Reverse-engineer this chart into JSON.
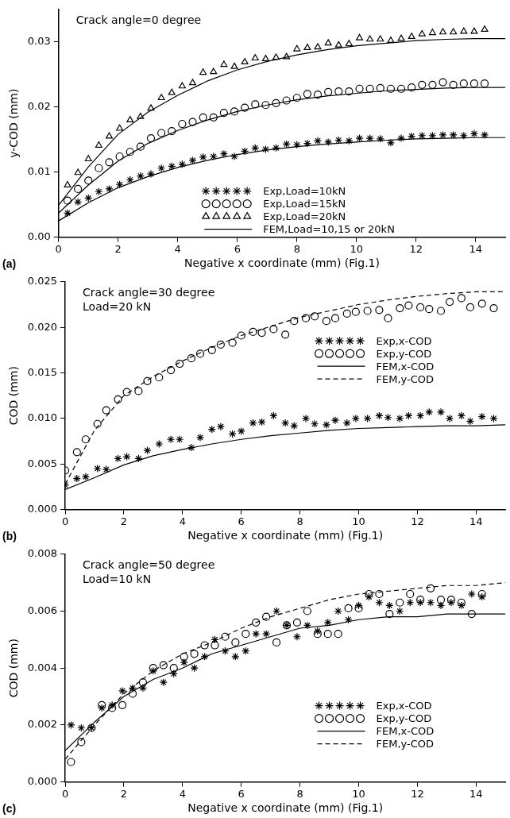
{
  "chart_data": [
    {
      "type": "scatter",
      "title": "Crack angle=0 degree",
      "xlabel": "Negative x coordinate (mm) (Fig.1)",
      "ylabel": "y-COD (mm)",
      "annotations": [
        "(a)"
      ],
      "xlim": [
        0,
        15
      ],
      "xticks": [
        0,
        2,
        4,
        6,
        8,
        10,
        12,
        14
      ],
      "ylim": [
        0,
        0.035
      ],
      "yticks": [
        {
          "value": 0,
          "label": "0.00"
        },
        {
          "value": 0.01,
          "label": "0.01"
        },
        {
          "value": 0.02,
          "label": "0.02"
        },
        {
          "value": 0.03,
          "label": "0.03"
        }
      ],
      "grid": false,
      "legend": "bottom",
      "x": [
        0.3,
        0.65,
        1,
        1.35,
        1.7,
        2.05,
        2.4,
        2.75,
        3.1,
        3.45,
        3.8,
        4.15,
        4.5,
        4.85,
        5.2,
        5.55,
        5.9,
        6.25,
        6.6,
        6.95,
        7.3,
        7.65,
        8,
        8.35,
        8.7,
        9.05,
        9.4,
        9.75,
        10.1,
        10.45,
        10.8,
        11.15,
        11.5,
        11.85,
        12.2,
        12.55,
        12.9,
        13.25,
        13.6,
        13.95,
        14.3
      ],
      "series": [
        {
          "name": "Exp,Load=10kN",
          "type": "scatter",
          "marker": "cross",
          "color": "#000000",
          "values": [
            0.0037,
            0.0054,
            0.006,
            0.007,
            0.0074,
            0.0081,
            0.0088,
            0.0094,
            0.0097,
            0.0106,
            0.0109,
            0.0112,
            0.0118,
            0.0123,
            0.0124,
            0.0128,
            0.0124,
            0.0132,
            0.0137,
            0.0135,
            0.0137,
            0.0143,
            0.0142,
            0.0144,
            0.0148,
            0.0146,
            0.0149,
            0.0148,
            0.0152,
            0.0152,
            0.0151,
            0.0145,
            0.0152,
            0.0155,
            0.0156,
            0.0156,
            0.0157,
            0.0157,
            0.0156,
            0.0159,
            0.0157
          ]
        },
        {
          "name": "Exp,Load=15kN",
          "type": "scatter",
          "marker": "circle",
          "color": "#000000",
          "values": [
            0.0056,
            0.0074,
            0.0087,
            0.0106,
            0.0115,
            0.0124,
            0.0131,
            0.0139,
            0.0152,
            0.016,
            0.0163,
            0.0174,
            0.0177,
            0.0184,
            0.0184,
            0.0191,
            0.0193,
            0.0199,
            0.0204,
            0.0203,
            0.0206,
            0.021,
            0.0214,
            0.022,
            0.0219,
            0.0223,
            0.0224,
            0.0224,
            0.0228,
            0.0228,
            0.0229,
            0.0228,
            0.0228,
            0.023,
            0.0234,
            0.0234,
            0.0238,
            0.0234,
            0.0236,
            0.0236,
            0.0236
          ]
        },
        {
          "name": "Exp,Load=20kN",
          "type": "scatter",
          "marker": "triangle",
          "color": "#000000",
          "values": [
            0.008,
            0.0099,
            0.012,
            0.0141,
            0.0155,
            0.0167,
            0.018,
            0.0185,
            0.0198,
            0.0214,
            0.0222,
            0.0232,
            0.0237,
            0.0253,
            0.0254,
            0.0265,
            0.0262,
            0.0269,
            0.0275,
            0.0274,
            0.0276,
            0.0277,
            0.0289,
            0.0291,
            0.0292,
            0.0298,
            0.0295,
            0.0297,
            0.0306,
            0.0304,
            0.0304,
            0.0302,
            0.0305,
            0.0308,
            0.0312,
            0.0314,
            0.0315,
            0.0315,
            0.0316,
            0.0316,
            0.0319
          ]
        },
        {
          "name": "FEM,Load=10,15 or 20kN",
          "type": "line",
          "marker": "none",
          "line_style": "solid",
          "color": "#000000",
          "x": [
            0,
            1,
            2,
            3,
            4,
            5,
            6,
            7,
            8,
            9,
            10,
            11,
            12,
            13,
            14,
            15
          ],
          "values": [
            0.0025,
            0.0053,
            0.0076,
            0.0093,
            0.0107,
            0.0118,
            0.0127,
            0.0134,
            0.0139,
            0.0143,
            0.0146,
            0.0149,
            0.0151,
            0.0152,
            0.0153,
            0.0153
          ]
        },
        {
          "type": "line",
          "marker": "none",
          "line_style": "solid",
          "color": "#000000",
          "x": [
            0,
            1,
            2,
            3,
            4,
            5,
            6,
            7,
            8,
            9,
            10,
            11,
            12,
            13,
            14,
            15
          ],
          "values": [
            0.0037,
            0.008,
            0.0117,
            0.0144,
            0.0164,
            0.018,
            0.0193,
            0.0203,
            0.0211,
            0.0217,
            0.0221,
            0.0225,
            0.0227,
            0.0229,
            0.023,
            0.023
          ]
        },
        {
          "type": "line",
          "marker": "none",
          "line_style": "solid",
          "color": "#000000",
          "x": [
            0,
            1,
            2,
            3,
            4,
            5,
            6,
            7,
            8,
            9,
            10,
            11,
            12,
            13,
            14,
            15
          ],
          "values": [
            0.0049,
            0.0108,
            0.0158,
            0.0192,
            0.0218,
            0.024,
            0.0257,
            0.027,
            0.028,
            0.0288,
            0.0294,
            0.0298,
            0.0302,
            0.0304,
            0.0305,
            0.0305
          ]
        }
      ]
    },
    {
      "type": "scatter",
      "title": "Crack angle=30 degree",
      "subtitle": "Load=20 kN",
      "xlabel": "Negative x coordinate (mm) (Fig.1)",
      "ylabel": "COD (mm)",
      "annotations": [
        "(b)"
      ],
      "xlim": [
        0,
        15
      ],
      "xticks": [
        0,
        2,
        4,
        6,
        8,
        10,
        12,
        14
      ],
      "ylim": [
        0,
        0.025
      ],
      "yticks": [
        {
          "value": 0,
          "label": "0.000"
        },
        {
          "value": 0.005,
          "label": "0.005"
        },
        {
          "value": 0.01,
          "label": "0.010"
        },
        {
          "value": 0.015,
          "label": "0.015"
        },
        {
          "value": 0.02,
          "label": "0.020"
        },
        {
          "value": 0.025,
          "label": "0.025"
        }
      ],
      "grid": false,
      "legend": "right",
      "x": [
        0,
        0.4,
        0.7,
        1.1,
        1.4,
        1.8,
        2.1,
        2.5,
        2.8,
        3.2,
        3.6,
        3.9,
        4.3,
        4.6,
        5,
        5.3,
        5.7,
        6,
        6.4,
        6.7,
        7.1,
        7.5,
        7.8,
        8.2,
        8.5,
        8.9,
        9.2,
        9.6,
        9.9,
        10.3,
        10.7,
        11,
        11.4,
        11.7,
        12.1,
        12.4,
        12.8,
        13.1,
        13.5,
        13.8,
        14.2,
        14.6
      ],
      "series": [
        {
          "name": "Exp,x-COD",
          "type": "scatter",
          "marker": "cross",
          "color": "#000000",
          "values": [
            0.0027,
            0.0034,
            0.0036,
            0.0045,
            0.0044,
            0.0056,
            0.0058,
            0.0056,
            0.0065,
            0.0072,
            0.0077,
            0.0077,
            0.0068,
            0.0079,
            0.0088,
            0.0091,
            0.0083,
            0.0086,
            0.0095,
            0.0096,
            0.0103,
            0.0095,
            0.0092,
            0.01,
            0.0094,
            0.0093,
            0.0098,
            0.0095,
            0.01,
            0.01,
            0.0103,
            0.0101,
            0.01,
            0.0103,
            0.0103,
            0.0107,
            0.0107,
            0.01,
            0.0103,
            0.0097,
            0.0102,
            0.01
          ]
        },
        {
          "name": "Exp,y-COD",
          "type": "scatter",
          "marker": "circle",
          "color": "#000000",
          "values": [
            0.0043,
            0.0063,
            0.0077,
            0.0094,
            0.0109,
            0.0121,
            0.0129,
            0.013,
            0.0141,
            0.0145,
            0.0153,
            0.016,
            0.0166,
            0.0171,
            0.0175,
            0.0181,
            0.0183,
            0.0191,
            0.0195,
            0.0194,
            0.0198,
            0.0192,
            0.0207,
            0.021,
            0.0212,
            0.0207,
            0.021,
            0.0215,
            0.0217,
            0.0218,
            0.0219,
            0.021,
            0.0221,
            0.0224,
            0.0222,
            0.022,
            0.0218,
            0.0228,
            0.0232,
            0.0222,
            0.0226,
            0.0221
          ]
        },
        {
          "name": "FEM,x-COD",
          "type": "line",
          "marker": "none",
          "line_style": "solid",
          "color": "#000000",
          "x": [
            0,
            1,
            2,
            3,
            4,
            5,
            6,
            7,
            8,
            9,
            10,
            11,
            12,
            13,
            14,
            15
          ],
          "values": [
            0.0022,
            0.0035,
            0.0049,
            0.0059,
            0.0066,
            0.0072,
            0.0077,
            0.0081,
            0.0084,
            0.0087,
            0.0089,
            0.009,
            0.0091,
            0.0092,
            0.0092,
            0.0093
          ]
        },
        {
          "name": "FEM,y-COD",
          "type": "line",
          "marker": "none",
          "line_style": "dashed",
          "color": "#000000",
          "x": [
            0,
            1,
            2,
            3,
            4,
            5,
            6,
            7,
            8,
            9,
            10,
            11,
            12,
            13,
            14,
            15
          ],
          "values": [
            0.0028,
            0.0087,
            0.0125,
            0.0146,
            0.0163,
            0.0178,
            0.0191,
            0.0201,
            0.0211,
            0.0218,
            0.0225,
            0.023,
            0.0234,
            0.0237,
            0.0239,
            0.0239
          ]
        }
      ]
    },
    {
      "type": "scatter",
      "title": "Crack angle=50 degree",
      "subtitle": "Load=10 kN",
      "xlabel": "Negative x coordinate (mm) (Fig.1)",
      "ylabel": "COD (mm)",
      "annotations": [
        "(c)"
      ],
      "xlim": [
        0,
        15
      ],
      "xticks": [
        0,
        2,
        4,
        6,
        8,
        10,
        12,
        14
      ],
      "ylim": [
        0,
        0.008
      ],
      "yticks": [
        {
          "value": 0,
          "label": "0.000"
        },
        {
          "value": 0.002,
          "label": "0.002"
        },
        {
          "value": 0.004,
          "label": "0.004"
        },
        {
          "value": 0.006,
          "label": "0.006"
        },
        {
          "value": 0.008,
          "label": "0.008"
        }
      ],
      "grid": false,
      "legend": "bottom right",
      "x": [
        0.2,
        0.55,
        0.9,
        1.25,
        1.6,
        1.95,
        2.3,
        2.65,
        3,
        3.35,
        3.7,
        4.05,
        4.4,
        4.75,
        5.1,
        5.45,
        5.8,
        6.15,
        6.5,
        6.85,
        7.2,
        7.55,
        7.9,
        8.25,
        8.6,
        8.95,
        9.3,
        9.65,
        10,
        10.35,
        10.7,
        11.05,
        11.4,
        11.75,
        12.1,
        12.45,
        12.8,
        13.15,
        13.5,
        13.85,
        14.2
      ],
      "series": [
        {
          "name": "Exp,x-COD",
          "type": "scatter",
          "marker": "cross",
          "color": "#000000",
          "values": [
            0.002,
            0.0019,
            0.0019,
            0.0026,
            0.0027,
            0.0032,
            0.0033,
            0.0033,
            0.0039,
            0.0035,
            0.0038,
            0.0042,
            0.004,
            0.0044,
            0.005,
            0.0046,
            0.0044,
            0.0046,
            0.0052,
            0.0052,
            0.006,
            0.0055,
            0.0051,
            0.0055,
            0.0053,
            0.0056,
            0.006,
            0.0057,
            0.0062,
            0.0065,
            0.0063,
            0.0062,
            0.006,
            0.0063,
            0.0063,
            0.0063,
            0.0062,
            0.0063,
            0.0062,
            0.0066,
            0.0065
          ]
        },
        {
          "name": "Exp,y-COD",
          "type": "scatter",
          "marker": "circle",
          "color": "#000000",
          "values": [
            0.0007,
            0.0014,
            0.0019,
            0.0027,
            0.0026,
            0.0027,
            0.0031,
            0.0035,
            0.004,
            0.0041,
            0.004,
            0.0044,
            0.0045,
            0.0048,
            0.0048,
            0.0051,
            0.0049,
            0.0052,
            0.0056,
            0.0058,
            0.0049,
            0.0055,
            0.0056,
            0.006,
            0.0052,
            0.0052,
            0.0052,
            0.0061,
            0.0061,
            0.0066,
            0.0066,
            0.0059,
            0.0063,
            0.0066,
            0.0064,
            0.0068,
            0.0064,
            0.0064,
            0.0063,
            0.0059,
            0.0066
          ]
        },
        {
          "name": "FEM,x-COD",
          "type": "line",
          "marker": "none",
          "line_style": "solid",
          "color": "#000000",
          "x": [
            0,
            1,
            2,
            3,
            4,
            5,
            6,
            7,
            8,
            9,
            10,
            11,
            12,
            13,
            14,
            15
          ],
          "values": [
            0.0011,
            0.0021,
            0.003,
            0.0036,
            0.004,
            0.0045,
            0.0048,
            0.0051,
            0.0054,
            0.0055,
            0.0057,
            0.0058,
            0.0058,
            0.0059,
            0.0059,
            0.0059
          ]
        },
        {
          "name": "FEM,y-COD",
          "type": "line",
          "marker": "none",
          "line_style": "dashed",
          "color": "#000000",
          "x": [
            0,
            1,
            2,
            3,
            4,
            5,
            6,
            7,
            8,
            9,
            10,
            11,
            12,
            13,
            14,
            15
          ],
          "values": [
            0.0008,
            0.002,
            0.0031,
            0.0039,
            0.0045,
            0.0049,
            0.0054,
            0.0058,
            0.0061,
            0.0064,
            0.0066,
            0.0067,
            0.0068,
            0.0069,
            0.0069,
            0.007
          ]
        }
      ]
    }
  ]
}
